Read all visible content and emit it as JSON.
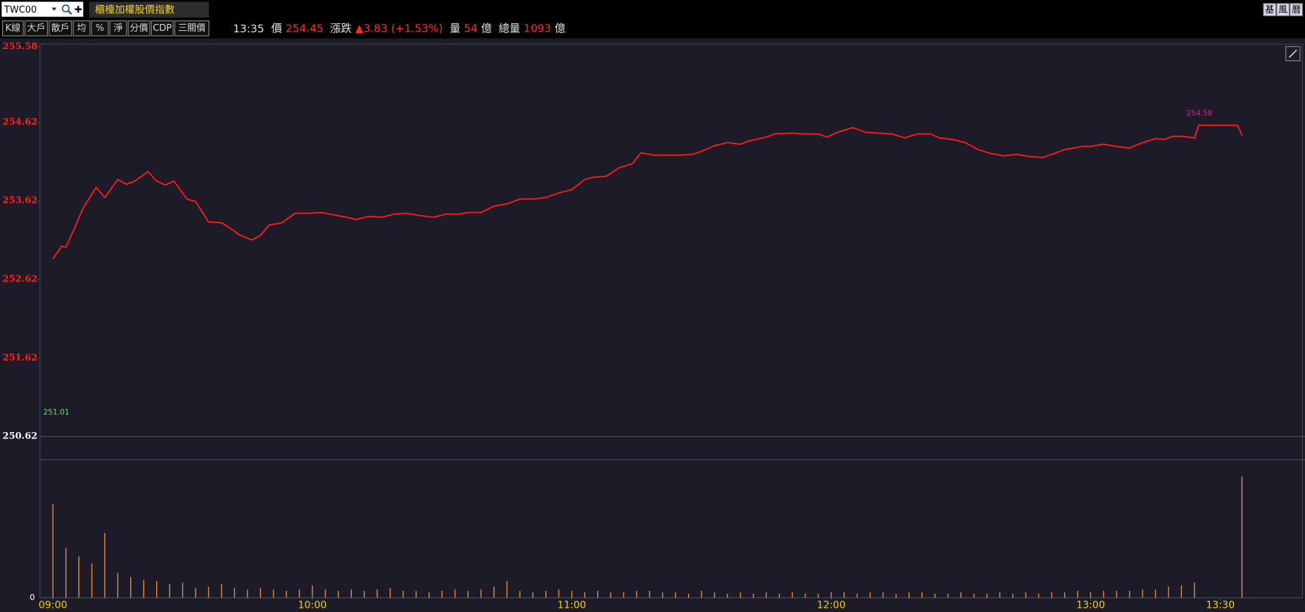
{
  "header": {
    "symbol": "TWC00",
    "title": "櫃檯加權股價指數",
    "tools": [
      "K線",
      "大戶",
      "散戶",
      "均",
      "%",
      "淨",
      "分價",
      "CDP",
      "三關價"
    ],
    "right_buttons": [
      "基",
      "風",
      "曆"
    ],
    "time": "13:35",
    "price_label": "價",
    "price": "254.45",
    "change_label": "漲跌",
    "change": "▲3.83 (+1.53%)",
    "volume_label": "量",
    "volume": "54",
    "volume_unit": "億",
    "total_label": "總量",
    "total": "1093",
    "total_unit": "億"
  },
  "chart_data": {
    "type": "line",
    "x": [
      "09:00",
      "09:02",
      "09:03",
      "09:05",
      "09:07",
      "09:10",
      "09:12",
      "09:15",
      "09:17",
      "09:19",
      "09:22",
      "09:24",
      "09:26",
      "09:28",
      "09:31",
      "09:33",
      "09:36",
      "09:39",
      "09:41",
      "09:43",
      "09:46",
      "09:48",
      "09:50",
      "09:53",
      "09:56",
      "09:59",
      "10:02",
      "10:06",
      "10:08",
      "10:10",
      "10:13",
      "10:16",
      "10:19",
      "10:22",
      "10:25",
      "10:28",
      "10:31",
      "10:34",
      "10:36",
      "10:39",
      "10:42",
      "10:45",
      "10:48",
      "10:51",
      "10:54",
      "10:57",
      "11:00",
      "11:03",
      "11:05",
      "11:08",
      "11:11",
      "11:14",
      "11:16",
      "11:19",
      "11:22",
      "11:25",
      "11:28",
      "11:30",
      "11:33",
      "11:36",
      "11:39",
      "11:41",
      "11:45",
      "11:47",
      "11:51",
      "11:54",
      "11:57",
      "11:59",
      "12:02",
      "12:05",
      "12:08",
      "12:11",
      "12:14",
      "12:17",
      "12:20",
      "12:23",
      "12:25",
      "12:28",
      "12:31",
      "12:34",
      "12:37",
      "12:40",
      "12:43",
      "12:46",
      "12:49",
      "12:52",
      "12:54",
      "12:58",
      "13:00",
      "13:03",
      "13:06",
      "13:09",
      "13:12",
      "13:15",
      "13:17",
      "13:19",
      "13:21",
      "13:24",
      "13:25",
      "13:29",
      "13:34",
      "13:35"
    ],
    "series": [
      {
        "color": "#ff1a1a",
        "values": [
          252.88,
          253.04,
          253.03,
          253.27,
          253.53,
          253.79,
          253.66,
          253.89,
          253.83,
          253.87,
          253.99,
          253.87,
          253.82,
          253.87,
          253.64,
          253.61,
          253.35,
          253.34,
          253.27,
          253.19,
          253.12,
          253.18,
          253.31,
          253.34,
          253.46,
          253.46,
          253.47,
          253.43,
          253.41,
          253.38,
          253.42,
          253.41,
          253.45,
          253.46,
          253.43,
          253.41,
          253.45,
          253.45,
          253.47,
          253.47,
          253.55,
          253.58,
          253.64,
          253.64,
          253.66,
          253.72,
          253.76,
          253.89,
          253.92,
          253.93,
          254.04,
          254.09,
          254.23,
          254.2,
          254.2,
          254.2,
          254.21,
          254.25,
          254.32,
          254.36,
          254.34,
          254.38,
          254.43,
          254.47,
          254.48,
          254.47,
          254.47,
          254.43,
          254.5,
          254.55,
          254.49,
          254.48,
          254.47,
          254.42,
          254.47,
          254.47,
          254.42,
          254.4,
          254.36,
          254.27,
          254.22,
          254.19,
          254.21,
          254.18,
          254.17,
          254.23,
          254.27,
          254.31,
          254.31,
          254.34,
          254.31,
          254.29,
          254.36,
          254.41,
          254.4,
          254.44,
          254.44,
          254.42,
          254.58,
          254.58,
          254.58,
          254.45
        ]
      }
    ],
    "xlim": [
      "08:57",
      "13:49"
    ],
    "xticks": [
      "09:00",
      "10:00",
      "11:00",
      "12:00",
      "13:00",
      "13:30"
    ],
    "ylim": [
      250.62,
      255.58
    ],
    "yticks": [
      250.62,
      251.62,
      252.62,
      253.62,
      254.62,
      255.58
    ],
    "annotations": [
      {
        "text": "254.58",
        "color": "#e0208f"
      },
      {
        "text": "251.01",
        "color": "#60e060"
      }
    ],
    "volume": {
      "type": "bar",
      "color": "#f08a30",
      "x": [
        "09:00",
        "09:03",
        "09:06",
        "09:09",
        "09:12",
        "09:15",
        "09:18",
        "09:21",
        "09:24",
        "09:27",
        "09:30",
        "09:33",
        "09:36",
        "09:39",
        "09:42",
        "09:45",
        "09:48",
        "09:51",
        "09:54",
        "09:57",
        "10:00",
        "10:03",
        "10:06",
        "10:09",
        "10:12",
        "10:15",
        "10:18",
        "10:21",
        "10:24",
        "10:27",
        "10:30",
        "10:33",
        "10:36",
        "10:39",
        "10:42",
        "10:45",
        "10:48",
        "10:51",
        "10:54",
        "10:57",
        "11:00",
        "11:03",
        "11:06",
        "11:09",
        "11:12",
        "11:15",
        "11:18",
        "11:21",
        "11:24",
        "11:27",
        "11:30",
        "11:33",
        "11:36",
        "11:39",
        "11:42",
        "11:45",
        "11:48",
        "11:51",
        "11:54",
        "11:57",
        "12:00",
        "12:03",
        "12:06",
        "12:09",
        "12:12",
        "12:15",
        "12:18",
        "12:21",
        "12:24",
        "12:27",
        "12:30",
        "12:33",
        "12:36",
        "12:39",
        "12:42",
        "12:45",
        "12:48",
        "12:51",
        "12:54",
        "12:57",
        "13:00",
        "13:03",
        "13:06",
        "13:09",
        "13:12",
        "13:15",
        "13:18",
        "13:21",
        "13:24",
        "13:35"
      ],
      "values": [
        68,
        36,
        30,
        25,
        47,
        18,
        15,
        13,
        12,
        10,
        11,
        7,
        8,
        10,
        7,
        6,
        7,
        6,
        5,
        6,
        9,
        6,
        5,
        6,
        5,
        6,
        7,
        5,
        5,
        4,
        5,
        6,
        5,
        6,
        8,
        12,
        5,
        4,
        5,
        6,
        5,
        4,
        5,
        4,
        4,
        5,
        5,
        4,
        4,
        3,
        5,
        4,
        3,
        4,
        3,
        4,
        3,
        4,
        3,
        3,
        4,
        4,
        3,
        4,
        4,
        3,
        4,
        4,
        3,
        3,
        4,
        3,
        3,
        4,
        3,
        4,
        3,
        4,
        4,
        5,
        4,
        5,
        5,
        5,
        6,
        6,
        8,
        9,
        11,
        88
      ],
      "ylim": [
        0,
        100
      ],
      "yticks": [
        0
      ]
    }
  }
}
